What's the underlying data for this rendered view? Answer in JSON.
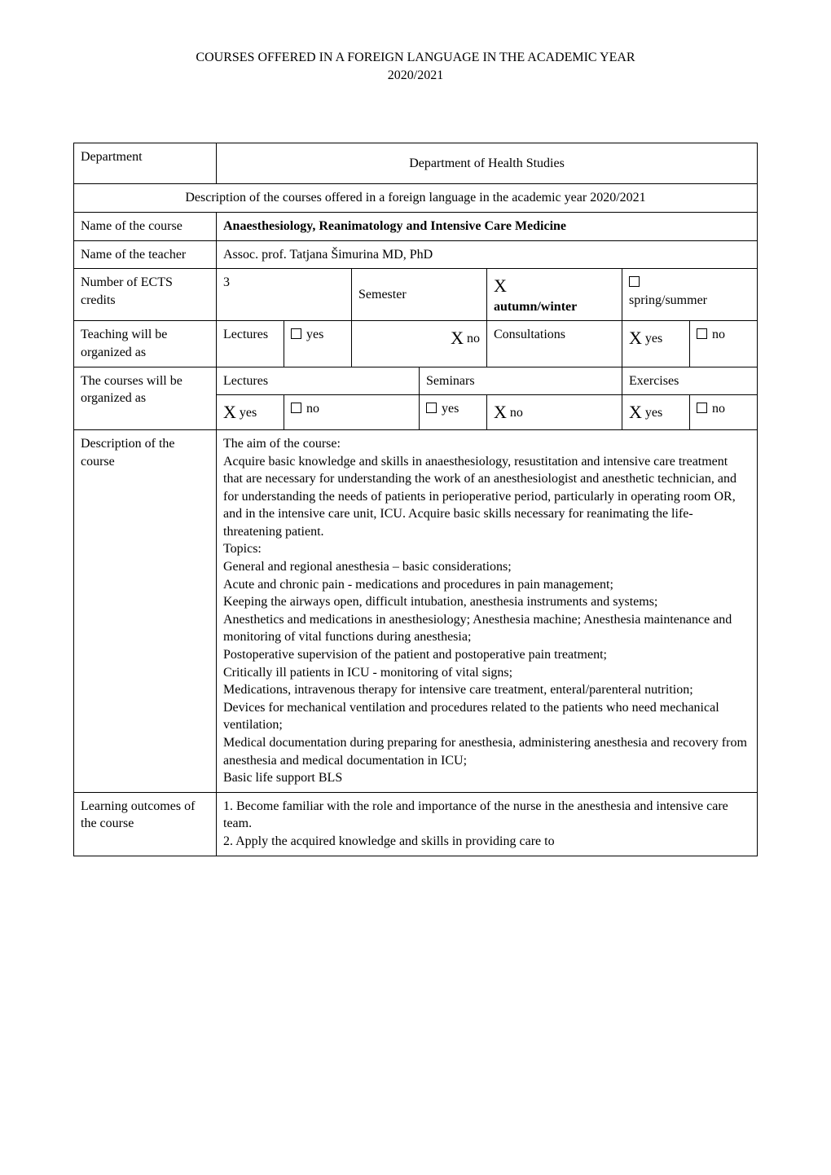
{
  "header": {
    "line1": "COURSES OFFERED IN A FOREIGN LANGUAGE IN THE ACADEMIC YEAR",
    "line2": "2020/2021"
  },
  "rows": {
    "department_label": "Department",
    "department_value": "Department of Health Studies",
    "description_text": "Description of the courses offered in a foreign language in the academic year 2020/2021",
    "course_name_label": "Name of the course",
    "course_name_value": "Anaesthesiology, Reanimatology and Intensive Care Medicine",
    "teacher_label": "Name of the teacher",
    "teacher_value": "Assoc. prof. Tatjana Šimurina MD, PhD",
    "ects_label": "Number of ECTS credits",
    "ects_value": "3",
    "semester_label": "Semester",
    "autumn_label": "autumn/winter",
    "spring_label": "spring/summer",
    "x_mark": "X",
    "teaching_label": "Teaching will be organized as",
    "lectures_label": "Lectures",
    "consult_label": "Consultations",
    "yes_label": "yes",
    "no_label": "no",
    "courses_label": "The courses will be organized as",
    "seminars_label": "Seminars",
    "exercises_label": "Exercises",
    "desc_label": "Description of the course",
    "desc_lines": [
      "The aim of the course:",
      "Acquire basic knowledge and skills in anaesthesiology, resustitation and intensive care treatment that are necessary for understanding the work of an anesthesiologist and anesthetic technician, and for understanding the needs of patients in perioperative period, particularly in operating room OR, and in the intensive care unit, ICU. Acquire basic skills necessary for reanimating the life-threatening patient.",
      "Topics:",
      "General and regional anesthesia – basic considerations;",
      "Acute and chronic pain - medications and procedures in pain management;",
      "Keeping the airways open, difficult intubation, anesthesia instruments and systems;",
      "Anesthetics and medications in anesthesiology; Anesthesia machine; Anesthesia maintenance and monitoring of vital functions during anesthesia;",
      "Postoperative supervision of the patient and postoperative pain treatment;",
      "Critically ill patients in ICU - monitoring of vital signs;",
      "Medications, intravenous therapy for intensive care treatment, enteral/parenteral nutrition;",
      "Devices for mechanical ventilation and procedures related to the patients who need mechanical ventilation;",
      "Medical documentation during preparing for anesthesia, administering anesthesia and recovery from anesthesia and medical documentation in ICU;",
      "Basic life support BLS"
    ],
    "outcomes_label": "Learning outcomes of the course",
    "outcomes_lines": [
      "1. Become familiar with the role and importance of the nurse in the anesthesia and intensive care team.",
      "2. Apply the acquired knowledge and skills in providing care to"
    ]
  }
}
